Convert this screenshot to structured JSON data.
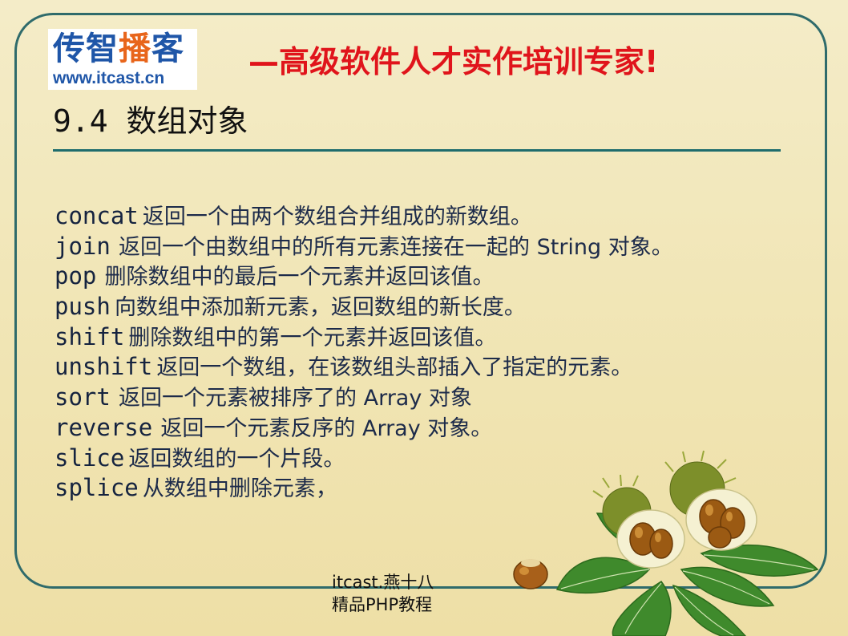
{
  "header": {
    "logo_cn_a": "传智",
    "logo_cn_b": "播",
    "logo_cn_c": "客",
    "logo_url": "www.itcast.cn",
    "slogan": "—高级软件人才实作培训专家!"
  },
  "section": {
    "title": "9.4 数组对象"
  },
  "methods": [
    {
      "name": "concat",
      "sep": " ",
      "desc": "返回一个由两个数组合并组成的新数组。"
    },
    {
      "name": "join",
      "sep": "  ",
      "desc": "返回一个由数组中的所有元素连接在一起的 String 对象。"
    },
    {
      "name": "pop",
      "sep": "  ",
      "desc": "删除数组中的最后一个元素并返回该值。"
    },
    {
      "name": "push",
      "sep": " ",
      "desc": "向数组中添加新元素，返回数组的新长度。"
    },
    {
      "name": "shift",
      "sep": " ",
      "desc": "删除数组中的第一个元素并返回该值。"
    },
    {
      "name": "unshift",
      "sep": " ",
      "desc": "返回一个数组，在该数组头部插入了指定的元素。"
    },
    {
      "name": "sort",
      "sep": "  ",
      "desc": "返回一个元素被排序了的 Array 对象"
    },
    {
      "name": "reverse",
      "sep": "  ",
      "desc": "返回一个元素反序的 Array 对象。"
    },
    {
      "name": "slice",
      "sep": " ",
      "desc": "返回数组的一个片段。"
    },
    {
      "name": "splice",
      "sep": " ",
      "desc": "从数组中删除元素，"
    }
  ],
  "footer": {
    "line1": "itcast.燕十八",
    "line2": "精品PHP教程"
  },
  "colors": {
    "frame": "#2f6b6b",
    "slogan": "#e0141b",
    "logo_blue": "#1f56a8",
    "logo_orange": "#e8651b",
    "rule": "#1f6d6d"
  }
}
